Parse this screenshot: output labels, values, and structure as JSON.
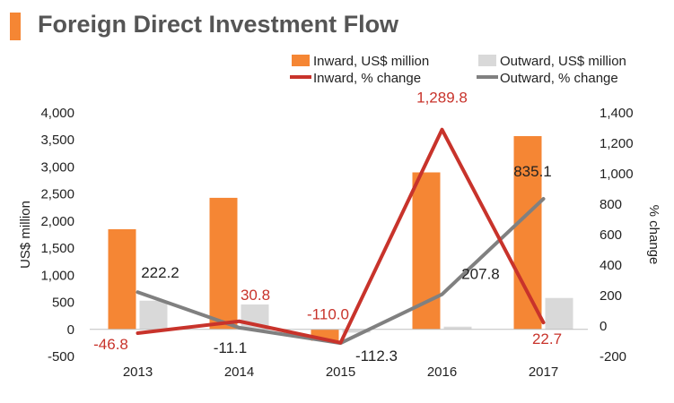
{
  "title": "Foreign Direct Investment Flow",
  "colors": {
    "accent": "#f58634",
    "inward_bar": "#f58634",
    "outward_bar": "#d9d9d9",
    "inward_line": "#c8332b",
    "outward_line": "#808080",
    "inward_label": "#c8332b",
    "outward_label": "#222222"
  },
  "chart_data": {
    "type": "bar",
    "title": "Foreign Direct Investment Flow",
    "categories": [
      "2013",
      "2014",
      "2015",
      "2016",
      "2017"
    ],
    "ylabel": "US$ million",
    "y2label": "% change",
    "ylim": [
      -500,
      4000
    ],
    "y2lim": [
      -200,
      1400
    ],
    "yticks": [
      "4,000",
      "3,500",
      "3,000",
      "2,500",
      "2,000",
      "1,500",
      "1,000",
      "500",
      "0",
      "-500"
    ],
    "y2ticks": [
      "1,400",
      "1,200",
      "1,000",
      "800",
      "600",
      "400",
      "200",
      "0",
      "-200"
    ],
    "legend": [
      {
        "name": "Inward, US$ million",
        "kind": "bar",
        "color": "#f58634"
      },
      {
        "name": "Outward, US$ million",
        "kind": "bar",
        "color": "#d9d9d9"
      },
      {
        "name": "Inward, % change",
        "kind": "line",
        "color": "#c8332b"
      },
      {
        "name": "Outward, % change",
        "kind": "line",
        "color": "#808080"
      }
    ],
    "series": [
      {
        "name": "Inward, US$ million",
        "type": "bar",
        "axis": "left",
        "values": [
          1850,
          2430,
          -210,
          2900,
          3570
        ]
      },
      {
        "name": "Outward, US$ million",
        "type": "bar",
        "axis": "left",
        "values": [
          530,
          460,
          -60,
          50,
          580
        ]
      },
      {
        "name": "Inward, % change",
        "type": "line",
        "axis": "right",
        "values": [
          -46.8,
          30.8,
          -110.0,
          1289.8,
          22.7
        ],
        "labels": [
          "-46.8",
          "30.8",
          "-110.0",
          "1,289.8",
          "22.7"
        ]
      },
      {
        "name": "Outward, % change",
        "type": "line",
        "axis": "right",
        "values": [
          222.2,
          -11.1,
          -112.3,
          207.8,
          835.1
        ],
        "labels": [
          "222.2",
          "-11.1",
          "-112.3",
          "207.8",
          "835.1"
        ]
      }
    ]
  }
}
